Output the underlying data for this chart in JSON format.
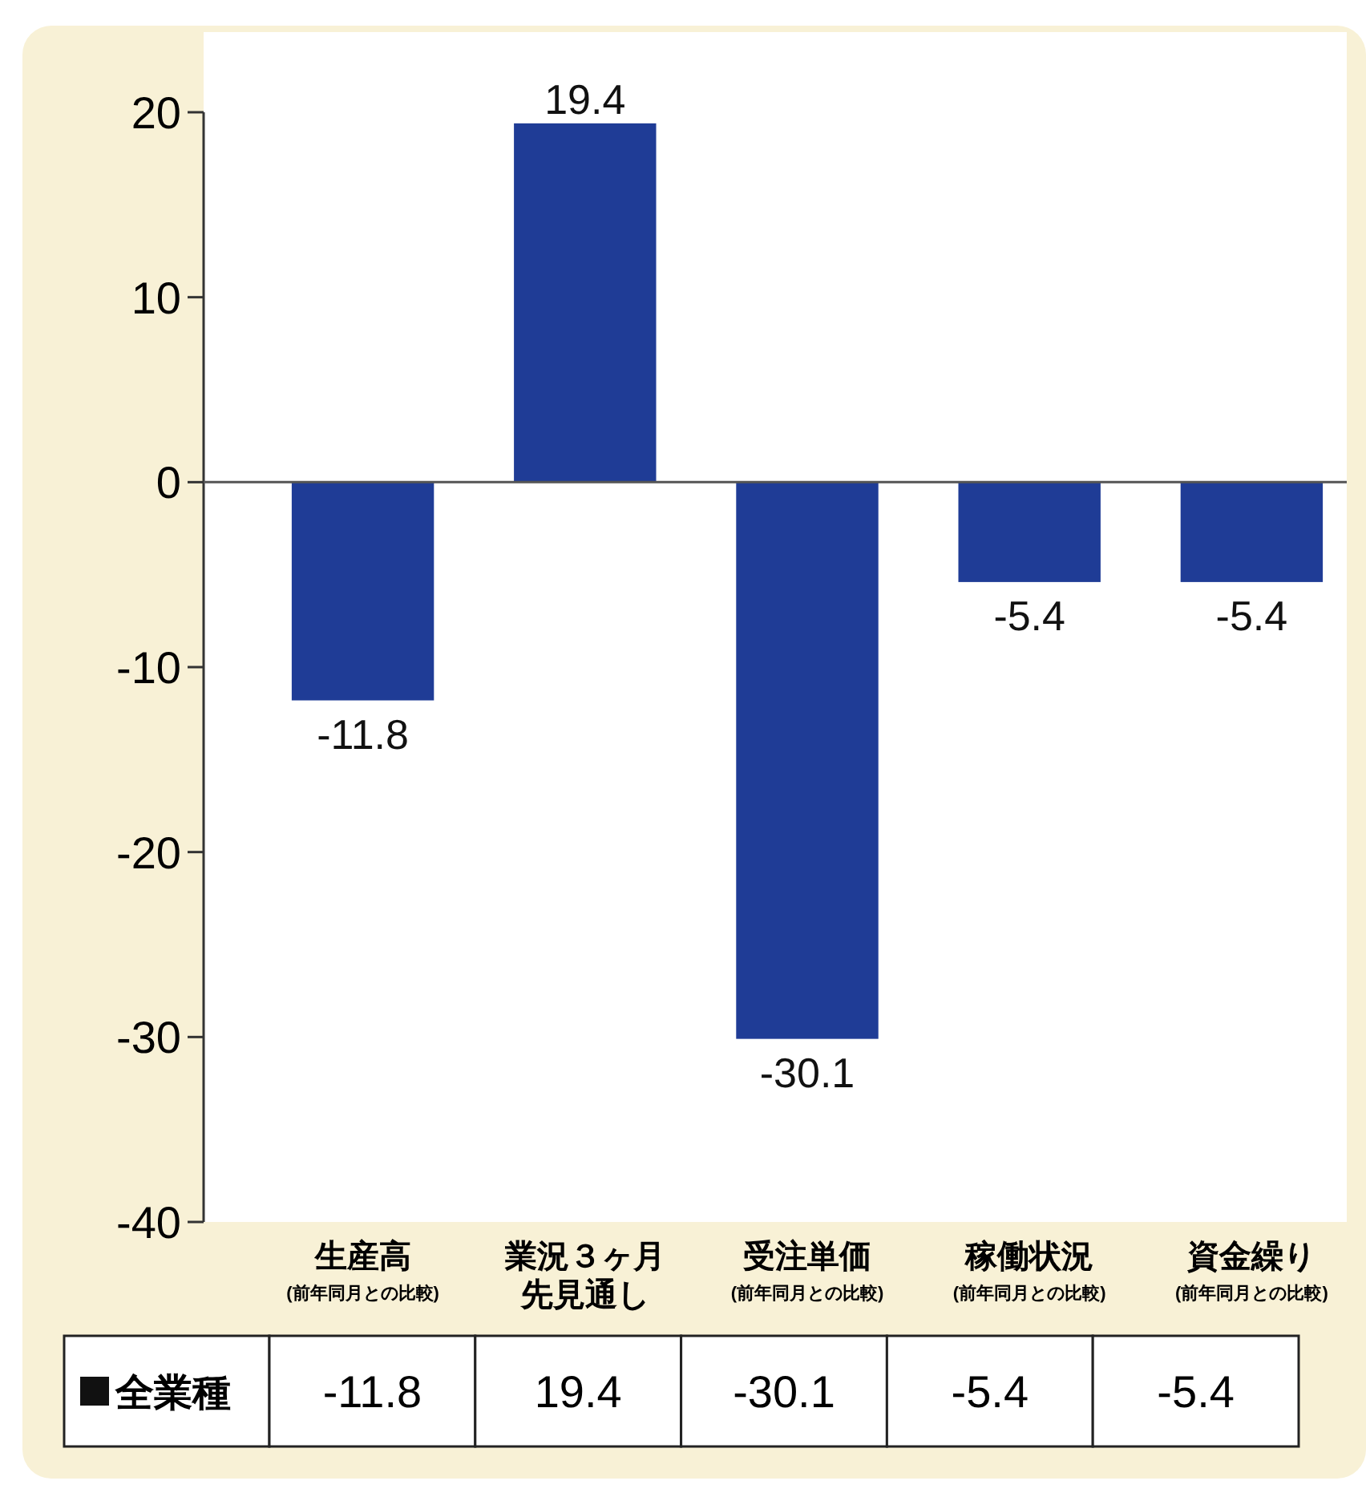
{
  "chart_data": {
    "type": "bar",
    "categories": [
      "生産高$_{(前年同月との比較)}$",
      "業況３ヶ月先見通し",
      "受注単価$_{(前年同月との比較)}$",
      "稼働状況$_{(前年同月との比較)}$",
      "資金繰り$_{(前年同月との比較)}$"
    ],
    "series": [
      {
        "name": "全業種",
        "color": "#1f3c96",
        "values": [
          -11.8,
          19.4,
          -30.1,
          -5.4,
          -5.4
        ],
        "value_labels": [
          "-11.8",
          "19.4",
          "-30.1",
          "-5.4",
          "-5.4"
        ]
      }
    ],
    "ylim": [
      -40,
      20
    ],
    "yticks": [
      -40,
      -30,
      -20,
      -10,
      0,
      10,
      20
    ],
    "legend": "bottom"
  }
}
